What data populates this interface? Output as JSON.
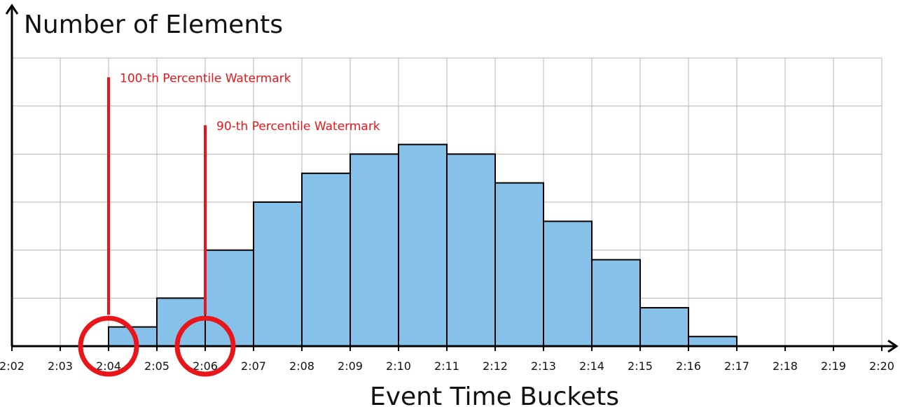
{
  "chart_data": {
    "type": "bar",
    "title": "",
    "ylabel": "Number of Elements",
    "xlabel": "Event Time Buckets",
    "x_ticks": [
      "2:02",
      "2:03",
      "2:04",
      "2:05",
      "2:06",
      "2:07",
      "2:08",
      "2:09",
      "2:10",
      "2:11",
      "2:12",
      "2:13",
      "2:14",
      "2:15",
      "2:16",
      "2:17",
      "2:18",
      "2:19",
      "2:20"
    ],
    "bins": [
      {
        "start": "2:04",
        "end": "2:05",
        "value": 0.4
      },
      {
        "start": "2:05",
        "end": "2:06",
        "value": 1.0
      },
      {
        "start": "2:06",
        "end": "2:07",
        "value": 2.0
      },
      {
        "start": "2:07",
        "end": "2:08",
        "value": 3.0
      },
      {
        "start": "2:08",
        "end": "2:09",
        "value": 3.6
      },
      {
        "start": "2:09",
        "end": "2:10",
        "value": 4.0
      },
      {
        "start": "2:10",
        "end": "2:11",
        "value": 4.2
      },
      {
        "start": "2:11",
        "end": "2:12",
        "value": 4.0
      },
      {
        "start": "2:12",
        "end": "2:13",
        "value": 3.4
      },
      {
        "start": "2:13",
        "end": "2:14",
        "value": 2.6
      },
      {
        "start": "2:14",
        "end": "2:15",
        "value": 1.8
      },
      {
        "start": "2:15",
        "end": "2:16",
        "value": 0.8
      },
      {
        "start": "2:16",
        "end": "2:17",
        "value": 0.2
      }
    ],
    "ylim": [
      0,
      6
    ],
    "y_ticks_labeled": false,
    "grid": true,
    "bar_color": "#85c1e9",
    "bar_edge_color": "#000000",
    "watermarks": [
      {
        "label": "100-th Percentile Watermark",
        "x": "2:04",
        "line_top": 5.6,
        "circled": true
      },
      {
        "label": "90-th Percentile Watermark",
        "x": "2:06",
        "line_top": 4.6,
        "circled": true
      }
    ],
    "annotation_color": "#e8161b"
  }
}
